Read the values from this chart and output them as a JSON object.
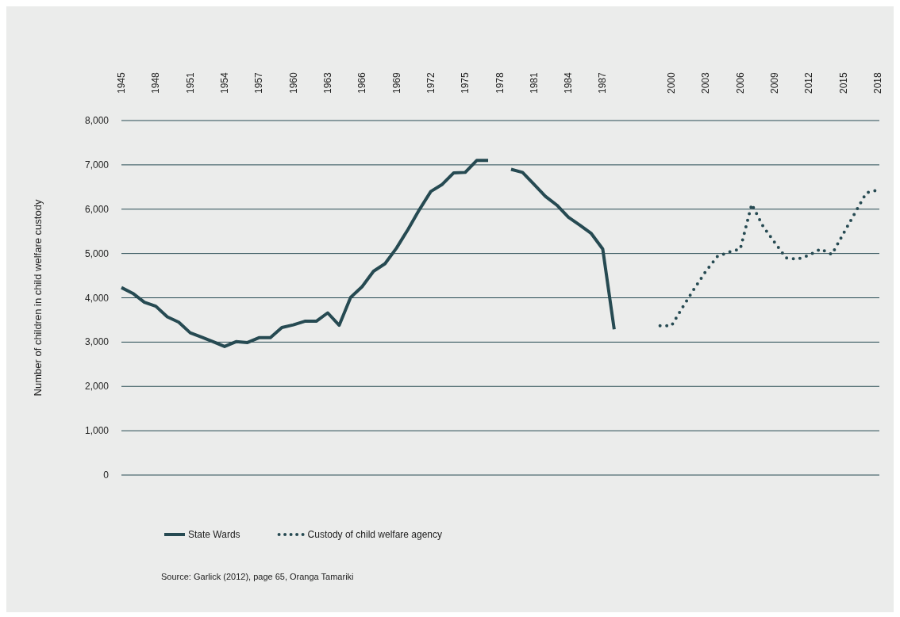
{
  "chart_data": {
    "type": "line",
    "ylabel": "Number of children in child welfare custody",
    "categories": [
      "1945",
      null,
      null,
      "1948",
      null,
      null,
      "1951",
      null,
      null,
      "1954",
      null,
      null,
      "1957",
      null,
      null,
      "1960",
      null,
      null,
      "1963",
      null,
      null,
      "1966",
      null,
      null,
      "1969",
      null,
      null,
      "1972",
      null,
      null,
      "1975",
      null,
      null,
      "1978",
      null,
      null,
      "1981",
      null,
      null,
      "1984",
      null,
      null,
      "1987",
      null,
      null,
      null,
      null,
      null,
      "2000",
      null,
      null,
      "2003",
      null,
      null,
      "2006",
      null,
      null,
      "2009",
      null,
      null,
      "2012",
      null,
      null,
      "2015",
      null,
      null,
      "2018"
    ],
    "series": [
      {
        "name": "State Wards",
        "color": "#264a52",
        "line_style": "solid",
        "values": [
          4230,
          4100,
          3900,
          3810,
          3570,
          3450,
          3210,
          3110,
          3010,
          2900,
          3010,
          2990,
          3100,
          3100,
          3330,
          3390,
          3470,
          3470,
          3660,
          3380,
          4010,
          4250,
          4600,
          4770,
          5120,
          5540,
          5990,
          6400,
          6560,
          6820,
          6830,
          7100,
          7100,
          null,
          6900,
          6830,
          6560,
          6290,
          6090,
          5820,
          5640,
          5450,
          5100,
          3290,
          null,
          null,
          null,
          null,
          null,
          null,
          null,
          null,
          null,
          null,
          null,
          null,
          null,
          null,
          null,
          null,
          null,
          null,
          null,
          null,
          null,
          null,
          null
        ]
      },
      {
        "name": "Custody of child welfare agency",
        "color": "#264a52",
        "line_style": "dotted",
        "values": [
          null,
          null,
          null,
          null,
          null,
          null,
          null,
          null,
          null,
          null,
          null,
          null,
          null,
          null,
          null,
          null,
          null,
          null,
          null,
          null,
          null,
          null,
          null,
          null,
          null,
          null,
          null,
          null,
          null,
          null,
          null,
          null,
          null,
          null,
          null,
          null,
          null,
          null,
          null,
          null,
          null,
          null,
          null,
          null,
          null,
          null,
          null,
          3370,
          3370,
          3800,
          4210,
          4600,
          4930,
          5030,
          5100,
          6110,
          5610,
          5250,
          4900,
          4870,
          4960,
          5100,
          4980,
          5450,
          5910,
          6370,
          6430
        ]
      }
    ],
    "ylim": [
      0,
      8000
    ],
    "yticks": [
      0,
      {
        "value": 1000,
        "label": "1,000"
      },
      {
        "value": 2000,
        "label": "2,000"
      },
      {
        "value": 3000,
        "label": "3,000"
      },
      {
        "value": 4000,
        "label": "4,000"
      },
      {
        "value": 5000,
        "label": "5,000"
      },
      {
        "value": 6000,
        "label": "6,000"
      },
      {
        "value": 7000,
        "label": "7,000"
      },
      {
        "value": 8000,
        "label": "8,000"
      }
    ],
    "grid": "y",
    "legend": "bottom left",
    "annotations": [
      "Source: Garlick (2012), page 65, Oranga Tamariki"
    ]
  }
}
